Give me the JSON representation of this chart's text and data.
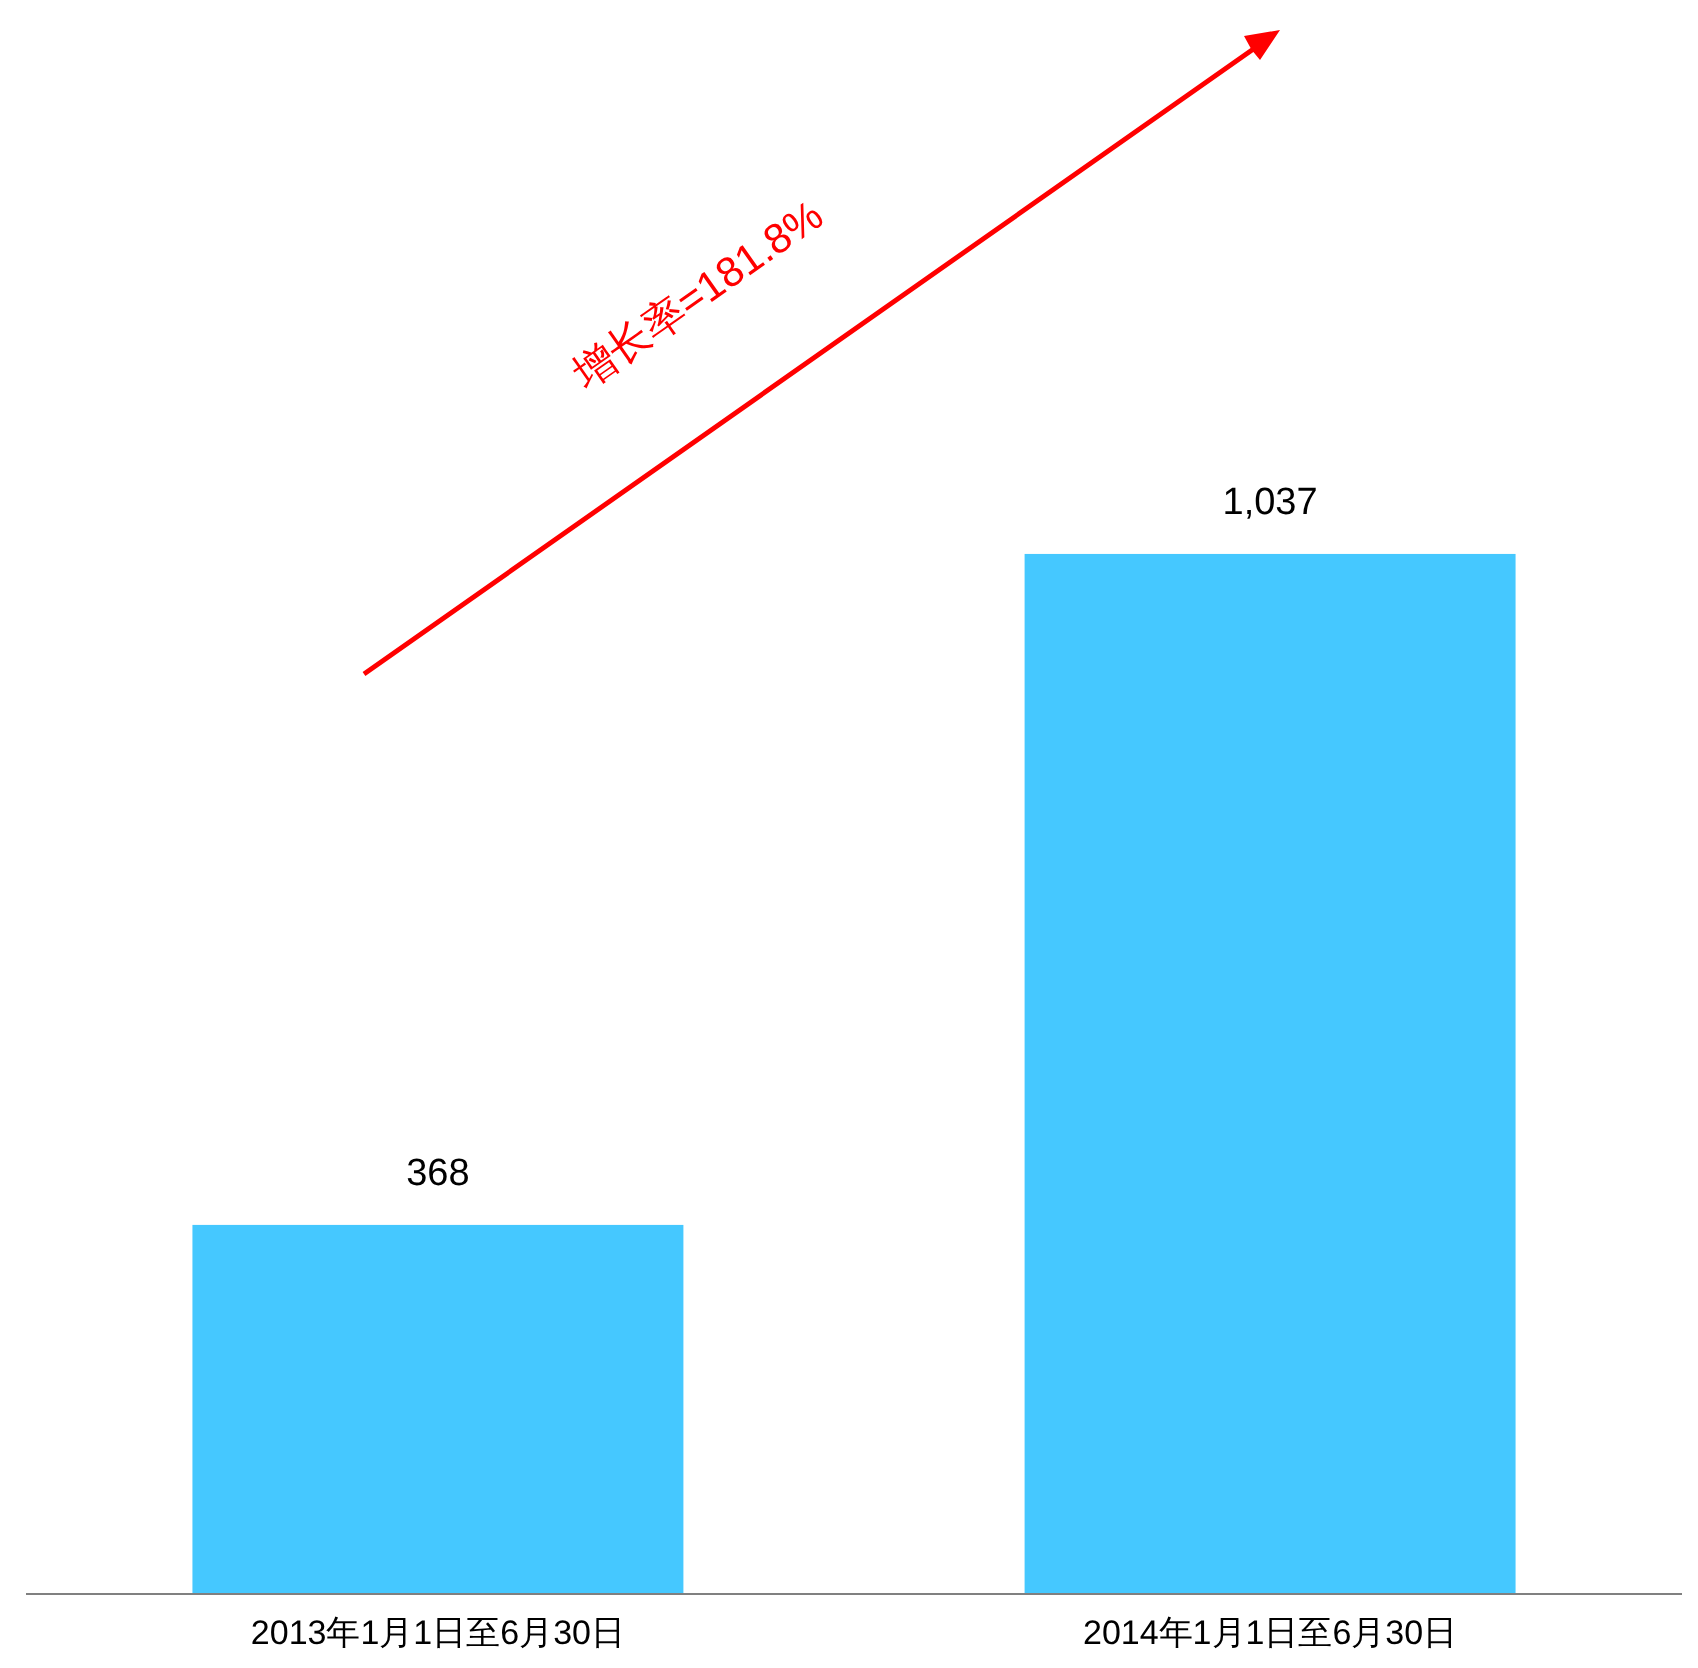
{
  "chart_data": {
    "type": "bar",
    "categories": [
      "2013年1月1日至6月30日",
      "2014年1月1日至6月30日"
    ],
    "values": [
      368,
      1037
    ],
    "color": "#45c8ff",
    "value_labels": [
      "368",
      "1,037"
    ],
    "annotations": [
      "增长率=181.8%"
    ]
  }
}
